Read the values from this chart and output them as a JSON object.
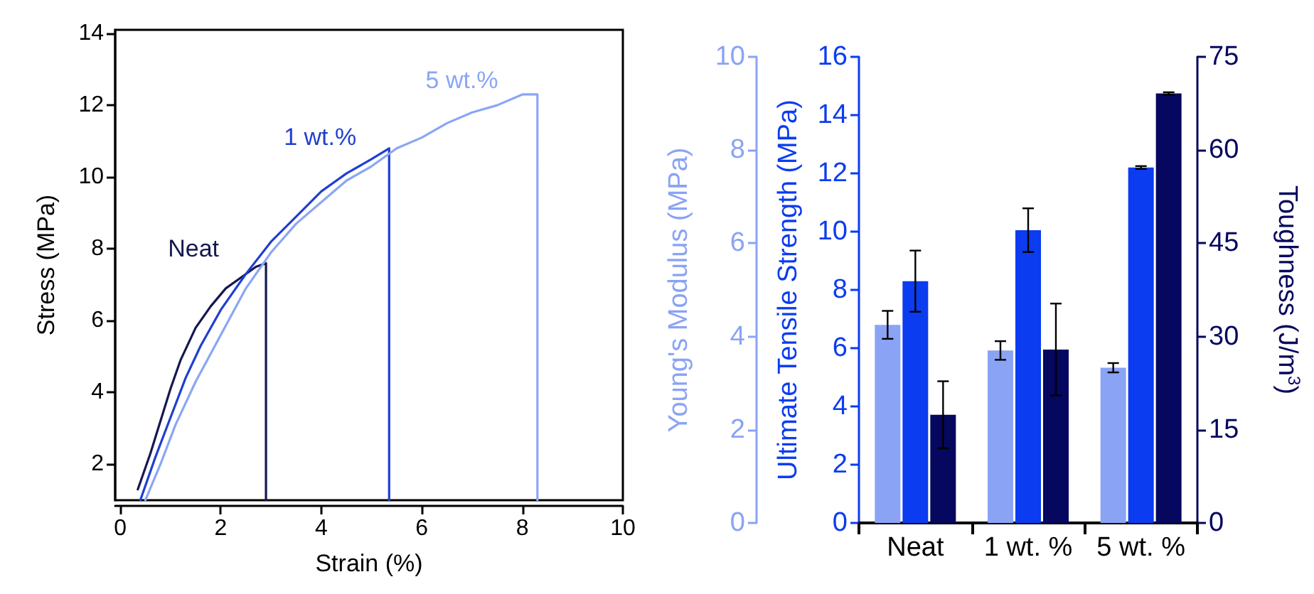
{
  "chart_data": [
    {
      "type": "line",
      "xlabel": "Strain (%)",
      "ylabel": "Stress (MPa)",
      "xlim": [
        -0.1,
        10
      ],
      "xticks": [
        0,
        2,
        4,
        6,
        8,
        10
      ],
      "ylim": [
        1,
        14.1
      ],
      "yticks": [
        2,
        4,
        6,
        8,
        10,
        12,
        14
      ],
      "grid": false,
      "legend": false,
      "marker": "none",
      "line_style": "solid",
      "series": [
        {
          "name": "Neat",
          "color": "#15184f",
          "x": [
            0.35,
            0.6,
            0.8,
            1.0,
            1.2,
            1.5,
            1.8,
            2.1,
            2.4,
            2.7,
            2.9,
            2.9
          ],
          "values": [
            1.3,
            2.3,
            3.2,
            4.1,
            4.9,
            5.8,
            6.4,
            6.9,
            7.2,
            7.5,
            7.6,
            1.0
          ]
        },
        {
          "name": "1 wt.%",
          "color": "#1f3fd0",
          "x": [
            0.4,
            0.7,
            1.0,
            1.3,
            1.6,
            2.0,
            2.5,
            3.0,
            3.5,
            4.0,
            4.5,
            5.0,
            5.35,
            5.35
          ],
          "values": [
            1.0,
            2.2,
            3.3,
            4.4,
            5.3,
            6.3,
            7.3,
            8.2,
            8.9,
            9.6,
            10.1,
            10.5,
            10.8,
            1.0
          ]
        },
        {
          "name": "5 wt.%",
          "color": "#8aa6f5",
          "x": [
            0.5,
            0.8,
            1.1,
            1.5,
            2.0,
            2.5,
            3.0,
            3.5,
            4.0,
            4.5,
            5.0,
            5.5,
            6.0,
            6.5,
            7.0,
            7.5,
            8.0,
            8.2,
            8.3,
            8.3
          ],
          "values": [
            1.0,
            2.0,
            3.1,
            4.3,
            5.6,
            6.9,
            7.9,
            8.7,
            9.3,
            9.9,
            10.3,
            10.8,
            11.1,
            11.5,
            11.8,
            12.0,
            12.3,
            12.3,
            12.3,
            1.0
          ]
        }
      ]
    },
    {
      "type": "bar",
      "categories": [
        "Neat",
        "1 wt. %",
        "5 wt. %"
      ],
      "ylabel": "Young's Modulus (MPa)",
      "ylim": [
        0,
        10
      ],
      "yticks": [
        0,
        2,
        4,
        6,
        8,
        10
      ],
      "y2label": "Ultimate Tensile Strength (MPa)",
      "y2lim": [
        0,
        16
      ],
      "y2ticks": [
        0,
        2,
        4,
        6,
        8,
        10,
        12,
        14,
        16
      ],
      "y3label": "Toughness (J/m$^{3}$)",
      "y3lim": [
        0,
        75
      ],
      "y3ticks": [
        0,
        15,
        30,
        45,
        60,
        75
      ],
      "grid": false,
      "legend": false,
      "series": [
        {
          "color": "#8aa3f5",
          "axis": "y",
          "values": [
            4.25,
            3.7,
            3.33
          ],
          "errors": [
            0.3,
            0.2,
            0.1
          ]
        },
        {
          "color": "#0b3cf0",
          "axis": "y2",
          "values": [
            8.3,
            10.05,
            12.2
          ],
          "errors": [
            1.05,
            0.75,
            0.05
          ]
        },
        {
          "color": "#06075e",
          "axis": "y3",
          "values": [
            17.4,
            27.9,
            69.1
          ],
          "errors": [
            5.4,
            7.4,
            0.2
          ]
        }
      ]
    }
  ]
}
